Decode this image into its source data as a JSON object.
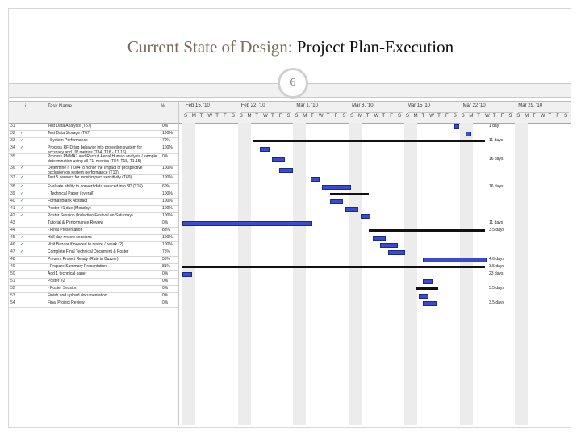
{
  "slide": {
    "title_lead": "Current State of Design:",
    "title_rest": "Project Plan-Execution",
    "page_number": "6"
  },
  "columns": {
    "info": "i",
    "task_name": "Task Name",
    "pct": "%"
  },
  "timeline": {
    "weeks": [
      "Feb 15, '10",
      "Feb 22, '10",
      "Mar 1, '10",
      "Mar 8, '10",
      "Mar 15 '10",
      "Mar 22 '10",
      "Mar 29, '10"
    ],
    "days": [
      "S",
      "M",
      "T",
      "W",
      "T",
      "F",
      "S",
      "S",
      "M",
      "T",
      "W",
      "T",
      "F",
      "S",
      "S",
      "M",
      "T",
      "W",
      "T",
      "F",
      "S",
      "S",
      "M",
      "T",
      "W",
      "T",
      "F",
      "S",
      "S",
      "M",
      "T",
      "W",
      "T",
      "F",
      "S",
      "S",
      "M",
      "T",
      "W",
      "T",
      "F",
      "S",
      "S",
      "M",
      "T",
      "W",
      "T",
      "F",
      "S"
    ]
  },
  "tasks": [
    {
      "id": "31",
      "ind": "",
      "name": "Test Data Analysis (T67)",
      "pct": "0%",
      "label": "1 day",
      "bar": [
        0.7,
        0.71
      ]
    },
    {
      "id": "32",
      "ind": "✓",
      "name": "Test Data Storage (T67)",
      "pct": "100%",
      "label": "",
      "bar": [
        0.73,
        0.74
      ]
    },
    {
      "id": "33",
      "ind": "✓",
      "name": "- System Performance",
      "pct": "70%",
      "label": "11 days",
      "sum": [
        0.18,
        0.78
      ]
    },
    {
      "id": "34",
      "ind": "✓",
      "name": "Process RFID tag behavior into projection system for accuracy and UV metrics (T84, T18 - T1.16)",
      "pct": "100%",
      "label": "",
      "bar": [
        0.2,
        0.22
      ]
    },
    {
      "id": "35",
      "ind": "",
      "name": "Process PMMA7 and Recruit Aerial Human analysis / sample determination using all T1. metrics (T84, T18, T1.15)",
      "pct": "0%",
      "label": "16 days",
      "bar": [
        0.23,
        0.26
      ]
    },
    {
      "id": "36",
      "ind": "✓",
      "name": "Determine if T.004 to honor the Impact of prospective occlusion on system performance (T10)",
      "pct": "100%",
      "label": "",
      "bar": [
        0.25,
        0.28
      ]
    },
    {
      "id": "37",
      "ind": "✓",
      "name": "Test 5 sensors for most impact sensitivity (T69)",
      "pct": "100%",
      "label": "",
      "bar": [
        0.33,
        0.35
      ]
    },
    {
      "id": "38",
      "ind": "✓",
      "name": "Evaluate ability to convert data sourced into 3D (T16)",
      "pct": "60%",
      "label": "16 days",
      "bar": [
        0.36,
        0.43
      ]
    },
    {
      "id": "39",
      "ind": "✓",
      "name": "- Technical Paper (overall)",
      "pct": "100%",
      "label": "",
      "sum": [
        0.38,
        0.48
      ]
    },
    {
      "id": "40",
      "ind": "✓",
      "name": "Format Blank Abstract",
      "pct": "100%",
      "label": "",
      "bar": [
        0.38,
        0.41
      ]
    },
    {
      "id": "41",
      "ind": "✓",
      "name": "Poster #1 due (Monday)",
      "pct": "100%",
      "label": "",
      "bar": [
        0.42,
        0.45
      ]
    },
    {
      "id": "42",
      "ind": "✓",
      "name": "Poster Session (Induction Festival on Saturday)",
      "pct": "100%",
      "label": "",
      "bar": [
        0.46,
        0.48
      ]
    },
    {
      "id": "43",
      "ind": "",
      "name": "Tutorial & Performance Review",
      "pct": "0%",
      "label": "11 days",
      "bar": [
        0.0,
        0.33
      ]
    },
    {
      "id": "44",
      "ind": "",
      "name": "- Final Presentation",
      "pct": "83%",
      "label": "3.5 days",
      "sum": [
        0.48,
        0.78
      ]
    },
    {
      "id": "45",
      "ind": "✓",
      "name": "Hall day review sessions",
      "pct": "100%",
      "label": "",
      "bar": [
        0.49,
        0.52
      ]
    },
    {
      "id": "46",
      "ind": "✓",
      "name": "Visit Bazaar if needed to resize / tweak (?)",
      "pct": "100%",
      "label": "",
      "bar": [
        0.51,
        0.55
      ]
    },
    {
      "id": "47",
      "ind": "✓",
      "name": "Complete Final Technical Document & Poster",
      "pct": "75%",
      "label": "",
      "bar": [
        0.53,
        0.57
      ]
    },
    {
      "id": "48",
      "ind": "",
      "name": "Present Project Ready (Rate in Buzzer)",
      "pct": "50%",
      "label": "4.6 days",
      "bar": [
        0.62,
        0.78
      ]
    },
    {
      "id": "49",
      "ind": "",
      "name": "- Prepare Summary Presentation",
      "pct": "81%",
      "label": "3.5 days",
      "sum": [
        0.0,
        0.78
      ]
    },
    {
      "id": "50",
      "ind": "",
      "name": "Add 1 technical paper",
      "pct": "0%",
      "label": "23 days",
      "bar": [
        0.0,
        0.02
      ]
    },
    {
      "id": "51",
      "ind": "",
      "name": "Poster #2",
      "pct": "0%",
      "label": "",
      "bar": [
        0.62,
        0.64
      ]
    },
    {
      "id": "52",
      "ind": "",
      "name": "- Poster Session",
      "pct": "0%",
      "label": "3.5 days",
      "sum": [
        0.6,
        0.66
      ]
    },
    {
      "id": "53",
      "ind": "",
      "name": "Finish and upload documentation",
      "pct": "0%",
      "label": "",
      "bar": [
        0.61,
        0.63
      ]
    },
    {
      "id": "54",
      "ind": "",
      "name": "Final Project Review",
      "pct": "0%",
      "label": "3.5 days",
      "bar": [
        0.62,
        0.65
      ]
    }
  ]
}
